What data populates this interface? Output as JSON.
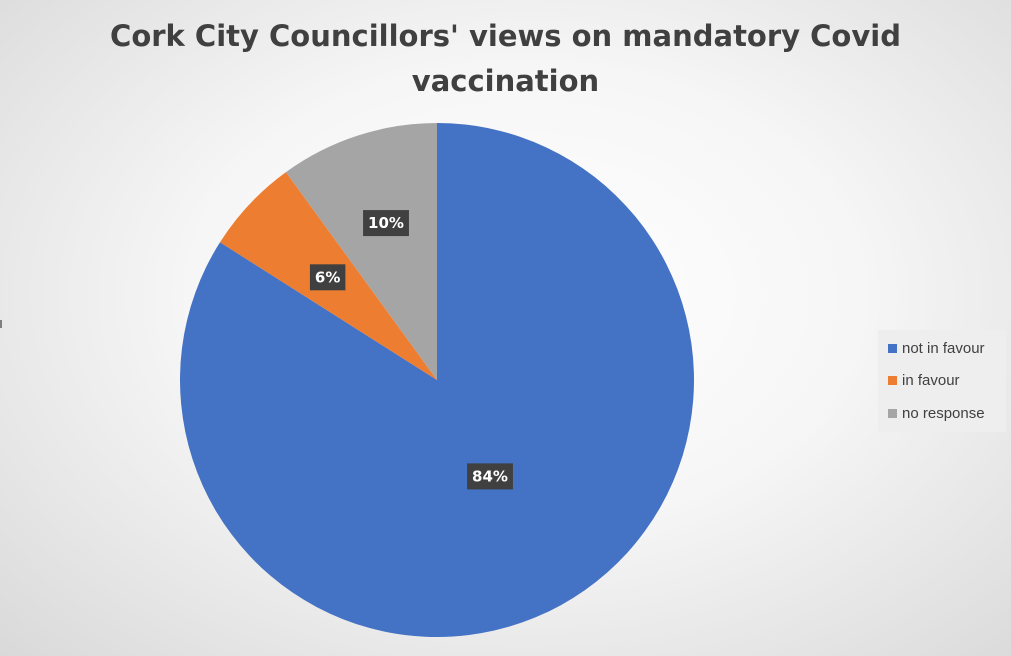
{
  "chart_data": {
    "type": "pie",
    "title": "Cork City Councillors' views on mandatory Covid vaccination",
    "title_lines": [
      "Cork City Councillors' views on mandatory Covid",
      "vaccination"
    ],
    "categories": [
      "not in favour",
      "in favour",
      "no response"
    ],
    "values": [
      84,
      6,
      10
    ],
    "data_labels": [
      "84%",
      "6%",
      "10%"
    ],
    "colors": [
      "#4472c4",
      "#ed7d31",
      "#a5a5a5"
    ],
    "legend": {
      "placement": "right",
      "entries": [
        "not in favour",
        "in favour",
        "no response"
      ]
    }
  }
}
